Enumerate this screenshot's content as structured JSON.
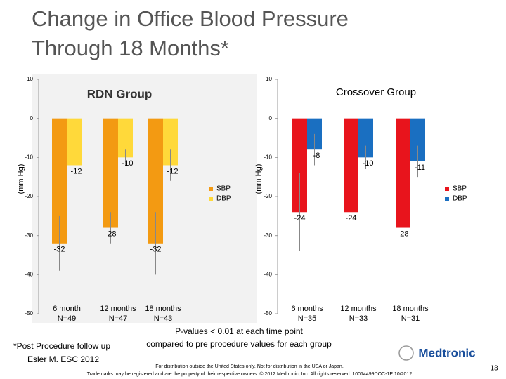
{
  "title": "Change in Office Blood Pressure Through 18 Months*",
  "chart_data": [
    {
      "type": "bar",
      "title": "RDN Group",
      "y_label": "(mm Hg)",
      "categories": [
        "6 month",
        "12 months",
        "18 months"
      ],
      "n_labels": [
        "N=49",
        "N=47",
        "N=43"
      ],
      "series": [
        {
          "name": "SBP",
          "color": "#f39a12",
          "values": [
            -32,
            -28,
            -32
          ],
          "errors": [
            7,
            4,
            8
          ]
        },
        {
          "name": "DBP",
          "color": "#ffd93a",
          "values": [
            -12,
            -10,
            -12
          ],
          "errors": [
            3,
            2,
            4
          ]
        }
      ],
      "ylim": [
        -50,
        10
      ],
      "yticks": [
        -50,
        -40,
        -30,
        -20,
        -10,
        0,
        10
      ],
      "legend": "right"
    },
    {
      "type": "bar",
      "title": "Crossover Group",
      "y_label": "(mm Hg)",
      "categories": [
        "6 months",
        "12 months",
        "18 months"
      ],
      "n_labels": [
        "N=35",
        "N=33",
        "N=31"
      ],
      "series": [
        {
          "name": "SBP",
          "color": "#e8141c",
          "values": [
            -24,
            -24,
            -28
          ],
          "errors": [
            10,
            4,
            3
          ]
        },
        {
          "name": "DBP",
          "color": "#1a6fc1",
          "values": [
            -8,
            -10,
            -11
          ],
          "errors": [
            4,
            3,
            4
          ]
        }
      ],
      "ylim": [
        -50,
        10
      ],
      "yticks": [
        -50,
        -40,
        -30,
        -20,
        -10,
        0,
        10
      ],
      "legend": "right"
    }
  ],
  "footnote": "*Post Procedure follow up",
  "pvalue_line1": "P-values < 0.01 at each time point",
  "pvalue_line2": "compared to pre procedure values for each group",
  "citation": "Esler M. ESC 2012",
  "disclaimer": "For distribution outside the United States only. Not for distribution in the USA or Japan.",
  "trademark": "Trademarks may be registered and are the property of their respective owners. © 2012 Medtronic, Inc. All rights reserved. 10014499DOC-1E 10/2012",
  "logo": "Medtronic",
  "page_number": "13"
}
